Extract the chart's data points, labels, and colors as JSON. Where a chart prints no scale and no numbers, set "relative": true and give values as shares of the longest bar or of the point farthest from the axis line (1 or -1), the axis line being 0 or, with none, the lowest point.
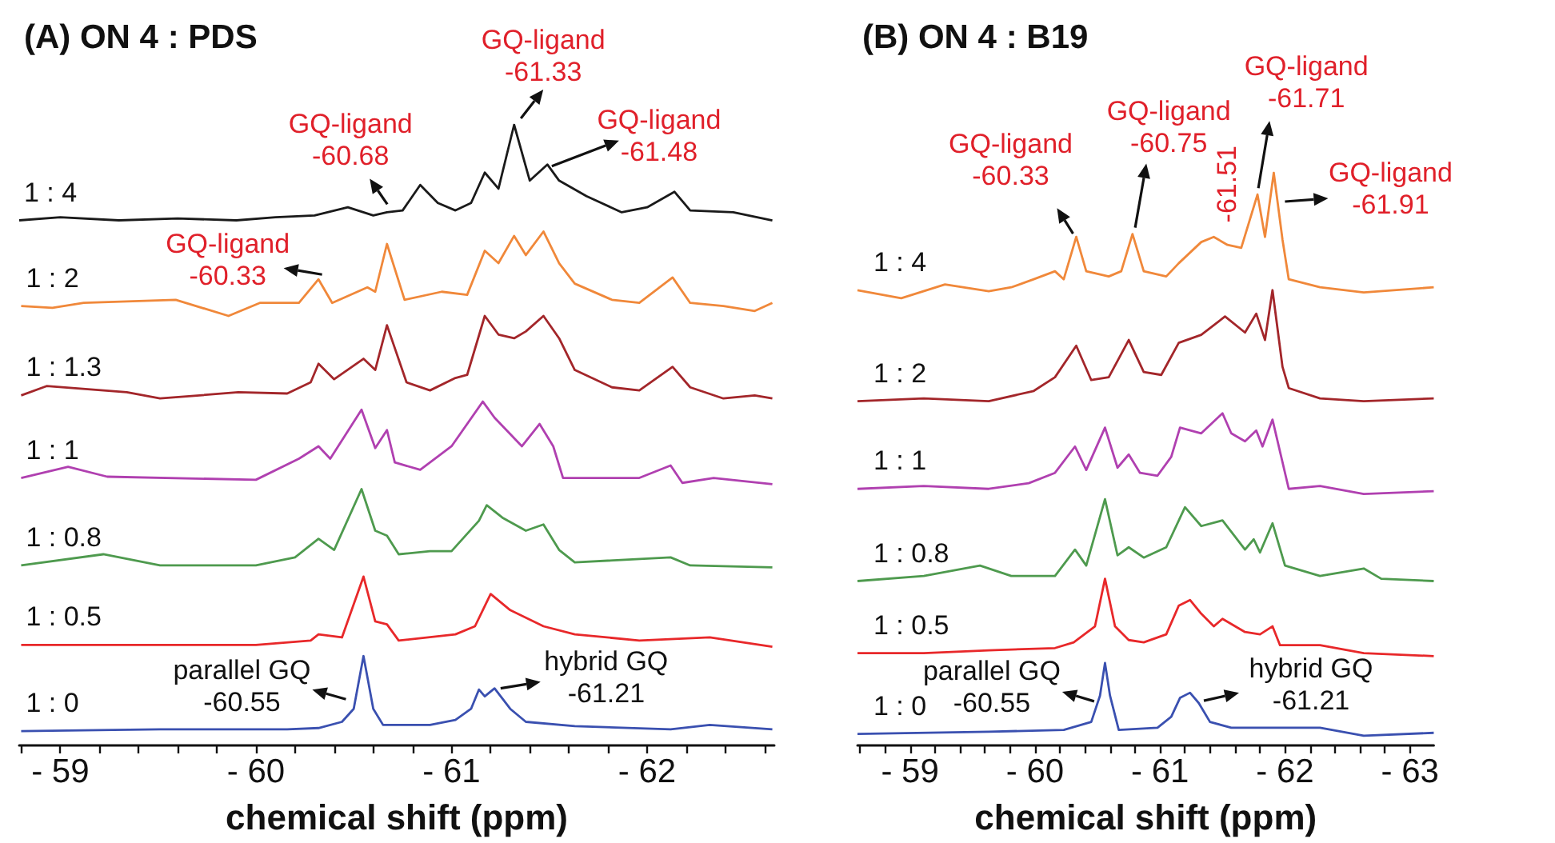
{
  "chart_data": [
    {
      "type": "line",
      "title": "(A) ON 4 : PDS",
      "xlabel": "chemical shift (ppm)",
      "relative": true,
      "xlim": [
        -58.79,
        -62.65
      ],
      "xticks": [
        {
          "value": -58.8,
          "label": null
        },
        {
          "value": -59,
          "label": "- 59"
        },
        {
          "value": -59.2,
          "label": null
        },
        {
          "value": -59.4,
          "label": null
        },
        {
          "value": -59.6,
          "label": null
        },
        {
          "value": -59.8,
          "label": null
        },
        {
          "value": -60,
          "label": "- 60"
        },
        {
          "value": -60.2,
          "label": null
        },
        {
          "value": -60.4,
          "label": null
        },
        {
          "value": -60.6,
          "label": null
        },
        {
          "value": -60.8,
          "label": null
        },
        {
          "value": -61,
          "label": "- 61"
        },
        {
          "value": -61.2,
          "label": null
        },
        {
          "value": -61.4,
          "label": null
        },
        {
          "value": -61.6,
          "label": null
        },
        {
          "value": -61.8,
          "label": null
        },
        {
          "value": -62,
          "label": "- 62"
        },
        {
          "value": -62.2,
          "label": null
        },
        {
          "value": -62.4,
          "label": null
        },
        {
          "value": -62.6,
          "label": null
        }
      ],
      "series": [
        {
          "name": "1 : 4",
          "color": "#1a1a1a",
          "x": [
            -58.79,
            -59.0,
            -59.3,
            -59.6,
            -59.9,
            -60.1,
            -60.3,
            -60.47,
            -60.6,
            -60.67,
            -60.75,
            -60.84,
            -60.93,
            -61.02,
            -61.1,
            -61.17,
            -61.24,
            -61.32,
            -61.4,
            -61.49,
            -61.55,
            -61.69,
            -61.87,
            -62.0,
            -62.14,
            -62.22,
            -62.44,
            -62.64
          ],
          "values": [
            0.846,
            0.851,
            0.846,
            0.849,
            0.846,
            0.851,
            0.854,
            0.867,
            0.854,
            0.859,
            0.862,
            0.903,
            0.874,
            0.862,
            0.874,
            0.923,
            0.897,
            1.0,
            0.91,
            0.936,
            0.91,
            0.885,
            0.859,
            0.867,
            0.892,
            0.862,
            0.859,
            0.846
          ]
        },
        {
          "name": "1 : 2",
          "color": "#f0883a",
          "x": [
            -58.8,
            -58.96,
            -59.12,
            -59.59,
            -59.86,
            -60.02,
            -60.22,
            -60.32,
            -60.39,
            -60.57,
            -60.61,
            -60.67,
            -60.76,
            -60.95,
            -61.08,
            -61.17,
            -61.24,
            -61.32,
            -61.38,
            -61.47,
            -61.55,
            -61.63,
            -61.82,
            -61.96,
            -62.13,
            -62.22,
            -62.39,
            -62.55,
            -62.64
          ],
          "values": [
            0.708,
            0.705,
            0.713,
            0.718,
            0.692,
            0.713,
            0.713,
            0.751,
            0.713,
            0.738,
            0.731,
            0.808,
            0.718,
            0.731,
            0.726,
            0.797,
            0.777,
            0.821,
            0.79,
            0.828,
            0.777,
            0.744,
            0.718,
            0.713,
            0.754,
            0.713,
            0.708,
            0.7,
            0.713
          ]
        },
        {
          "name": "1 : 1.3",
          "color": "#a3262a",
          "x": [
            -58.8,
            -58.93,
            -59.34,
            -59.51,
            -59.91,
            -60.16,
            -60.28,
            -60.32,
            -60.4,
            -60.55,
            -60.61,
            -60.67,
            -60.77,
            -60.89,
            -61.02,
            -61.08,
            -61.17,
            -61.24,
            -61.32,
            -61.38,
            -61.47,
            -61.55,
            -61.63,
            -61.82,
            -61.96,
            -62.13,
            -62.22,
            -62.39,
            -62.55,
            -62.64
          ],
          "values": [
            0.564,
            0.579,
            0.569,
            0.559,
            0.569,
            0.567,
            0.585,
            0.615,
            0.59,
            0.623,
            0.605,
            0.677,
            0.585,
            0.572,
            0.592,
            0.597,
            0.692,
            0.662,
            0.656,
            0.667,
            0.692,
            0.656,
            0.605,
            0.577,
            0.572,
            0.61,
            0.577,
            0.559,
            0.564,
            0.559
          ]
        },
        {
          "name": "1 : 1",
          "color": "#b040b0",
          "x": [
            -58.8,
            -59.04,
            -59.24,
            -60.0,
            -60.22,
            -60.32,
            -60.38,
            -60.54,
            -60.61,
            -60.67,
            -60.71,
            -60.84,
            -61.0,
            -61.16,
            -61.22,
            -61.36,
            -61.45,
            -61.52,
            -61.57,
            -61.69,
            -61.96,
            -62.12,
            -62.18,
            -62.34,
            -62.64
          ],
          "values": [
            0.431,
            0.449,
            0.433,
            0.428,
            0.462,
            0.482,
            0.462,
            0.541,
            0.479,
            0.508,
            0.456,
            0.444,
            0.482,
            0.554,
            0.528,
            0.482,
            0.518,
            0.482,
            0.431,
            0.431,
            0.431,
            0.451,
            0.423,
            0.431,
            0.421
          ]
        },
        {
          "name": "1 : 0.8",
          "color": "#4e9a4e",
          "x": [
            -58.8,
            -59.22,
            -59.51,
            -60.0,
            -60.2,
            -60.32,
            -60.4,
            -60.54,
            -60.61,
            -60.67,
            -60.73,
            -60.89,
            -61.0,
            -61.14,
            -61.18,
            -61.26,
            -61.38,
            -61.47,
            -61.55,
            -61.63,
            -62.12,
            -62.22,
            -62.64
          ],
          "values": [
            0.29,
            0.308,
            0.29,
            0.29,
            0.303,
            0.333,
            0.315,
            0.413,
            0.346,
            0.338,
            0.308,
            0.313,
            0.313,
            0.362,
            0.387,
            0.367,
            0.346,
            0.356,
            0.315,
            0.295,
            0.303,
            0.29,
            0.287
          ]
        },
        {
          "name": "1 : 0.5",
          "color": "#e8282a",
          "x": [
            -58.8,
            -59.51,
            -60.0,
            -60.28,
            -60.32,
            -60.44,
            -60.55,
            -60.61,
            -60.67,
            -60.73,
            -61.02,
            -61.12,
            -61.2,
            -61.3,
            -61.47,
            -61.63,
            -61.96,
            -62.32,
            -62.64
          ],
          "values": [
            0.162,
            0.162,
            0.162,
            0.169,
            0.179,
            0.174,
            0.272,
            0.2,
            0.195,
            0.169,
            0.179,
            0.192,
            0.244,
            0.218,
            0.192,
            0.179,
            0.169,
            0.174,
            0.159
          ]
        },
        {
          "name": "1 : 0",
          "color": "#3a50b0",
          "x": [
            -58.8,
            -59.51,
            -60.16,
            -60.32,
            -60.44,
            -60.5,
            -60.55,
            -60.6,
            -60.65,
            -60.89,
            -61.02,
            -61.1,
            -61.14,
            -61.17,
            -61.22,
            -61.3,
            -61.38,
            -61.63,
            -62.12,
            -62.32,
            -62.64
          ],
          "values": [
            0.023,
            0.026,
            0.026,
            0.028,
            0.038,
            0.059,
            0.144,
            0.059,
            0.033,
            0.033,
            0.041,
            0.059,
            0.09,
            0.079,
            0.092,
            0.059,
            0.038,
            0.031,
            0.026,
            0.033,
            0.026
          ]
        }
      ],
      "annotations": [
        {
          "text": "GQ-ligand\n-60.68",
          "x": -60.68,
          "y": 0.859
        },
        {
          "text": "GQ-ligand\n-61.33",
          "x": -61.33,
          "y": 1.0
        },
        {
          "text": "GQ-ligand\n-61.48",
          "x": -61.48,
          "y": 0.936
        },
        {
          "text": "GQ-ligand\n-60.33",
          "x": -60.33,
          "y": 0.751
        },
        {
          "text": "parallel GQ\n-60.55",
          "x": -60.55,
          "y": 0.144
        },
        {
          "text": "hybrid GQ\n-61.21",
          "x": -61.21,
          "y": 0.092
        }
      ]
    },
    {
      "type": "line",
      "title": "(B) ON 4 : B19",
      "xlabel": "chemical shift (ppm)",
      "relative": true,
      "xlim": [
        -58.58,
        -63.19
      ],
      "xticks": [
        {
          "value": -58.6,
          "label": null
        },
        {
          "value": -58.8,
          "label": null
        },
        {
          "value": -59,
          "label": "- 59"
        },
        {
          "value": -59.2,
          "label": null
        },
        {
          "value": -59.4,
          "label": null
        },
        {
          "value": -59.6,
          "label": null
        },
        {
          "value": -59.8,
          "label": null
        },
        {
          "value": -60,
          "label": "- 60"
        },
        {
          "value": -60.2,
          "label": null
        },
        {
          "value": -60.4,
          "label": null
        },
        {
          "value": -60.6,
          "label": null
        },
        {
          "value": -60.8,
          "label": null
        },
        {
          "value": -61,
          "label": "- 61"
        },
        {
          "value": -61.2,
          "label": null
        },
        {
          "value": -61.4,
          "label": null
        },
        {
          "value": -61.6,
          "label": null
        },
        {
          "value": -61.8,
          "label": null
        },
        {
          "value": -62,
          "label": "- 62"
        },
        {
          "value": -62.2,
          "label": null
        },
        {
          "value": -62.4,
          "label": null
        },
        {
          "value": -62.6,
          "label": null
        },
        {
          "value": -62.8,
          "label": null
        },
        {
          "value": -63,
          "label": "- 63"
        }
      ],
      "series": [
        {
          "name": "1 : 4",
          "color": "#f0883a",
          "x": [
            -58.58,
            -58.93,
            -59.28,
            -59.63,
            -59.81,
            -59.99,
            -60.16,
            -60.23,
            -60.33,
            -60.41,
            -60.59,
            -60.69,
            -60.78,
            -60.87,
            -61.05,
            -61.15,
            -61.33,
            -61.43,
            -61.54,
            -61.65,
            -61.78,
            -61.84,
            -61.91,
            -61.98,
            -62.03,
            -62.28,
            -62.63,
            -63.19
          ],
          "values": [
            0.795,
            0.781,
            0.805,
            0.793,
            0.8,
            0.814,
            0.828,
            0.814,
            0.888,
            0.828,
            0.819,
            0.828,
            0.893,
            0.828,
            0.819,
            0.842,
            0.879,
            0.888,
            0.874,
            0.869,
            0.962,
            0.888,
            1.0,
            0.883,
            0.814,
            0.8,
            0.791,
            0.8
          ]
        },
        {
          "name": "1 : 2",
          "color": "#a3262a",
          "x": [
            -58.58,
            -59.11,
            -59.63,
            -59.99,
            -60.16,
            -60.33,
            -60.45,
            -60.59,
            -60.75,
            -60.87,
            -61.01,
            -61.15,
            -61.33,
            -61.52,
            -61.68,
            -61.77,
            -61.84,
            -61.9,
            -61.98,
            -62.03,
            -62.28,
            -62.63,
            -63.19
          ],
          "values": [
            0.601,
            0.606,
            0.601,
            0.619,
            0.643,
            0.698,
            0.638,
            0.643,
            0.708,
            0.652,
            0.647,
            0.703,
            0.717,
            0.749,
            0.721,
            0.754,
            0.708,
            0.795,
            0.661,
            0.624,
            0.606,
            0.601,
            0.606
          ]
        },
        {
          "name": "1 : 1",
          "color": "#b040b0",
          "x": [
            -58.58,
            -59.11,
            -59.63,
            -59.95,
            -60.16,
            -60.32,
            -60.41,
            -60.56,
            -60.66,
            -60.75,
            -60.84,
            -60.98,
            -61.09,
            -61.16,
            -61.33,
            -61.5,
            -61.57,
            -61.68,
            -61.77,
            -61.82,
            -61.9,
            -62.03,
            -62.28,
            -62.63,
            -63.19
          ],
          "values": [
            0.448,
            0.453,
            0.448,
            0.458,
            0.476,
            0.522,
            0.481,
            0.555,
            0.485,
            0.508,
            0.476,
            0.471,
            0.504,
            0.555,
            0.545,
            0.58,
            0.545,
            0.531,
            0.55,
            0.522,
            0.569,
            0.448,
            0.453,
            0.439,
            0.444
          ]
        },
        {
          "name": "1 : 0.8",
          "color": "#4e9a4e",
          "x": [
            -58.58,
            -59.11,
            -59.56,
            -59.81,
            -60.16,
            -60.32,
            -60.41,
            -60.56,
            -60.66,
            -60.75,
            -60.87,
            -61.05,
            -61.2,
            -61.33,
            -61.5,
            -61.68,
            -61.75,
            -61.8,
            -61.9,
            -62.0,
            -62.28,
            -62.63,
            -62.77,
            -63.19
          ],
          "values": [
            0.287,
            0.296,
            0.314,
            0.296,
            0.296,
            0.342,
            0.314,
            0.43,
            0.332,
            0.346,
            0.328,
            0.346,
            0.416,
            0.383,
            0.393,
            0.342,
            0.36,
            0.337,
            0.388,
            0.314,
            0.296,
            0.309,
            0.291,
            0.287
          ]
        },
        {
          "name": "1 : 0.5",
          "color": "#e8282a",
          "x": [
            -58.58,
            -59.11,
            -59.63,
            -60.16,
            -60.31,
            -60.48,
            -60.56,
            -60.64,
            -60.75,
            -60.87,
            -61.05,
            -61.15,
            -61.24,
            -61.33,
            -61.43,
            -61.5,
            -61.68,
            -61.8,
            -61.9,
            -61.96,
            -62.28,
            -62.63,
            -63.19
          ],
          "values": [
            0.161,
            0.161,
            0.166,
            0.17,
            0.18,
            0.208,
            0.291,
            0.208,
            0.184,
            0.18,
            0.194,
            0.244,
            0.254,
            0.23,
            0.208,
            0.221,
            0.198,
            0.194,
            0.208,
            0.175,
            0.175,
            0.161,
            0.156
          ]
        },
        {
          "name": "1 : 0",
          "color": "#3a50b0",
          "x": [
            -58.58,
            -59.63,
            -60.23,
            -60.45,
            -60.52,
            -60.56,
            -60.6,
            -60.67,
            -60.98,
            -61.09,
            -61.16,
            -61.24,
            -61.31,
            -61.4,
            -61.57,
            -62.28,
            -62.63,
            -63.19
          ],
          "values": [
            0.02,
            0.024,
            0.027,
            0.041,
            0.087,
            0.144,
            0.087,
            0.027,
            0.031,
            0.05,
            0.083,
            0.092,
            0.074,
            0.041,
            0.031,
            0.031,
            0.017,
            0.022
          ]
        }
      ],
      "annotations": [
        {
          "text": "GQ-ligand\n-60.33",
          "x": -60.33,
          "y": 0.888
        },
        {
          "text": "GQ-ligand\n-60.75",
          "x": -60.75,
          "y": 0.893
        },
        {
          "text": "-61.51",
          "x": -61.51,
          "y": 0.874
        },
        {
          "text": "GQ-ligand\n-61.71",
          "x": -61.71,
          "y": 0.962
        },
        {
          "text": "GQ-ligand\n-61.91",
          "x": -61.91,
          "y": 1.0
        },
        {
          "text": "parallel GQ\n-60.55",
          "x": -60.55,
          "y": 0.144
        },
        {
          "text": "hybrid GQ\n-61.21",
          "x": -61.21,
          "y": 0.092
        }
      ]
    }
  ]
}
